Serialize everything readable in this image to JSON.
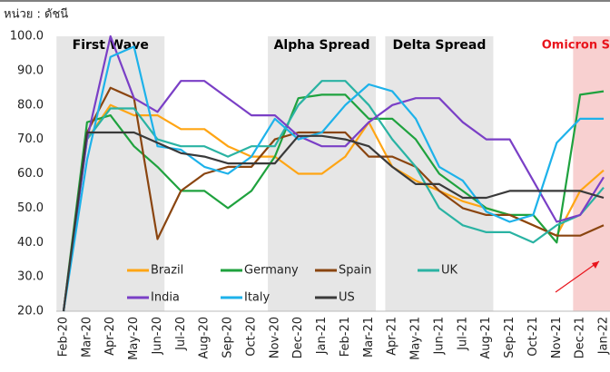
{
  "chart_data": {
    "type": "line",
    "unit_label": "หน่วย : ดัชนี",
    "categories": [
      "Feb-20",
      "Mar-20",
      "Apr-20",
      "May-20",
      "Jun-20",
      "Jul-20",
      "Aug-20",
      "Sep-20",
      "Oct-20",
      "Nov-20",
      "Dec-20",
      "Jan-21",
      "Feb-21",
      "Mar-21",
      "Apr-21",
      "May-21",
      "Jun-21",
      "Jul-21",
      "Aug-21",
      "Sep-21",
      "Oct-21",
      "Nov-21",
      "Dec-21",
      "Jan-22"
    ],
    "ylim": [
      20,
      100
    ],
    "yticks": [
      {
        "value": 20,
        "label": "20.0"
      },
      {
        "value": 30,
        "label": "30.0"
      },
      {
        "value": 40,
        "label": "40.0"
      },
      {
        "value": 50,
        "label": "50.0"
      },
      {
        "value": 60,
        "label": "60.0"
      },
      {
        "value": 70,
        "label": "70.0"
      },
      {
        "value": 80,
        "label": "80.0"
      },
      {
        "value": 90,
        "label": "90.0"
      },
      {
        "value": 100,
        "label": "100.0"
      }
    ],
    "spans": [
      {
        "label": "First Wave",
        "from": "Feb-20",
        "to": "Jun-20",
        "color": "#e6e6e6",
        "label_color": "#000000"
      },
      {
        "label": "Alpha Spread",
        "from": "Nov-20",
        "to": "Mar-21",
        "color": "#e6e6e6",
        "label_color": "#000000"
      },
      {
        "label": "Delta Spread",
        "from": "Apr-21",
        "to": "Aug-21",
        "color": "#e6e6e6",
        "label_color": "#000000"
      },
      {
        "label": "Omicron Spread",
        "from": "Dec-21",
        "to": "Jan-22",
        "color": "#f8d0d0",
        "label_color": "#e8141c"
      }
    ],
    "series": [
      {
        "name": "Brazil",
        "color": "#ffa514",
        "values": [
          null,
          70,
          80,
          77,
          77,
          73,
          73,
          68,
          65,
          65,
          60,
          60,
          65,
          75,
          62,
          58,
          55,
          52,
          50,
          48,
          45,
          42,
          55,
          61
        ]
      },
      {
        "name": "Germany",
        "color": "#1fa23e",
        "values": [
          20,
          75,
          77,
          68,
          62,
          55,
          55,
          50,
          55,
          65,
          82,
          83,
          83,
          76,
          76,
          70,
          60,
          55,
          50,
          48,
          48,
          40,
          83,
          84
        ]
      },
      {
        "name": "Spain",
        "color": "#8a4510",
        "values": [
          20,
          72,
          85,
          82,
          41,
          55,
          60,
          62,
          62,
          70,
          72,
          72,
          72,
          65,
          65,
          62,
          55,
          50,
          48,
          48,
          45,
          42,
          42,
          45
        ]
      },
      {
        "name": "UK",
        "color": "#2ab3a3",
        "values": [
          20,
          70,
          79,
          79,
          70,
          68,
          68,
          65,
          68,
          68,
          80,
          87,
          87,
          80,
          70,
          62,
          50,
          45,
          43,
          43,
          40,
          45,
          48,
          56
        ]
      },
      {
        "name": "India",
        "color": "#7a3fc6",
        "values": [
          20,
          70,
          100,
          82,
          78,
          87,
          87,
          82,
          77,
          77,
          71,
          68,
          68,
          75,
          80,
          82,
          82,
          75,
          70,
          70,
          58,
          46,
          48,
          59
        ]
      },
      {
        "name": "Italy",
        "color": "#1db2ea",
        "values": [
          20,
          64,
          94,
          97,
          68,
          67,
          62,
          60,
          65,
          76,
          70,
          72,
          80,
          86,
          84,
          76,
          62,
          58,
          49,
          46,
          48,
          69,
          76,
          76
        ]
      },
      {
        "name": "US",
        "color": "#3a3a3a",
        "values": [
          20,
          72,
          72,
          72,
          69,
          66,
          65,
          63,
          63,
          63,
          71,
          71,
          70,
          68,
          62,
          57,
          57,
          53,
          53,
          55,
          55,
          55,
          55,
          53
        ]
      }
    ]
  }
}
